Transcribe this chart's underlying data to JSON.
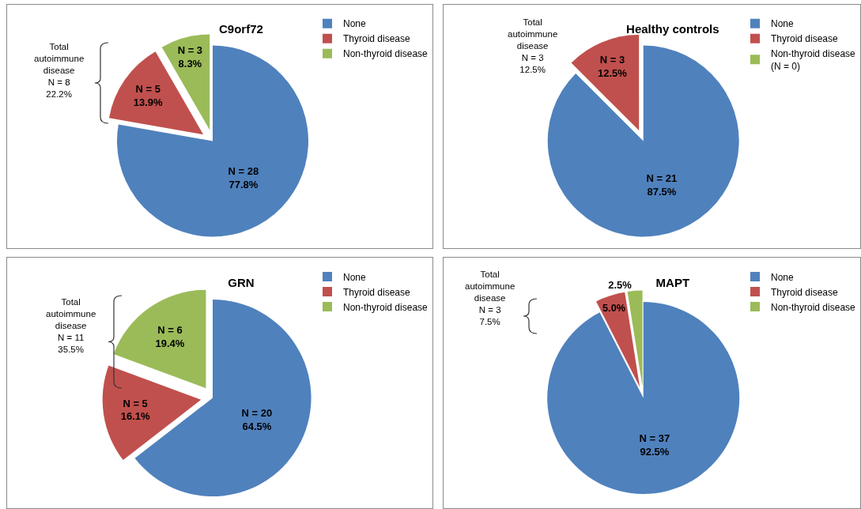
{
  "chart_data": [
    {
      "type": "pie",
      "title": "C9orf72",
      "categories": [
        "None",
        "Thyroid disease",
        "Non-thyroid disease"
      ],
      "values": [
        28,
        5,
        3
      ],
      "colors": [
        "#4f81bd",
        "#c0504d",
        "#9bbb59"
      ],
      "value_labels": [
        "N = 28\n77.8%",
        "N = 5\n13.9%",
        "N = 3\n8.3%"
      ],
      "legend": "top right",
      "annotations": [
        "Total\nautoimmune\ndisease\nN = 8\n22.2%"
      ]
    },
    {
      "type": "pie",
      "title": "Healthy controls",
      "categories": [
        "None",
        "Thyroid disease",
        "Non-thyroid disease\n(N = 0)"
      ],
      "values": [
        21,
        3,
        0
      ],
      "colors": [
        "#4f81bd",
        "#c0504d",
        "#9bbb59"
      ],
      "value_labels": [
        "N = 21\n87.5%",
        "N = 3\n12.5%",
        null
      ],
      "legend": "top right",
      "annotations": [
        "Total\nautoimmune\ndisease\nN = 3\n12.5%"
      ]
    },
    {
      "type": "pie",
      "title": "GRN",
      "categories": [
        "None",
        "Thyroid disease",
        "Non-thyroid disease"
      ],
      "values": [
        20,
        5,
        6
      ],
      "colors": [
        "#4f81bd",
        "#c0504d",
        "#9bbb59"
      ],
      "value_labels": [
        "N = 20\n64.5%",
        "N = 5\n16.1%",
        "N = 6\n19.4%"
      ],
      "legend": "top right",
      "annotations": [
        "Total\nautoimmune\ndisease\nN = 11\n35.5%"
      ]
    },
    {
      "type": "pie",
      "title": "MAPT",
      "categories": [
        "None",
        "Thyroid disease",
        "Non-thyroid disease"
      ],
      "values": [
        92.5,
        5.0,
        2.5
      ],
      "colors": [
        "#4f81bd",
        "#c0504d",
        "#9bbb59"
      ],
      "value_labels": [
        "N = 37\n92.5%",
        "5.0%",
        "2.5%"
      ],
      "legend": "top right",
      "annotations": [
        "Total\nautoimmune\ndisease\nN = 3\n7.5%"
      ]
    }
  ]
}
